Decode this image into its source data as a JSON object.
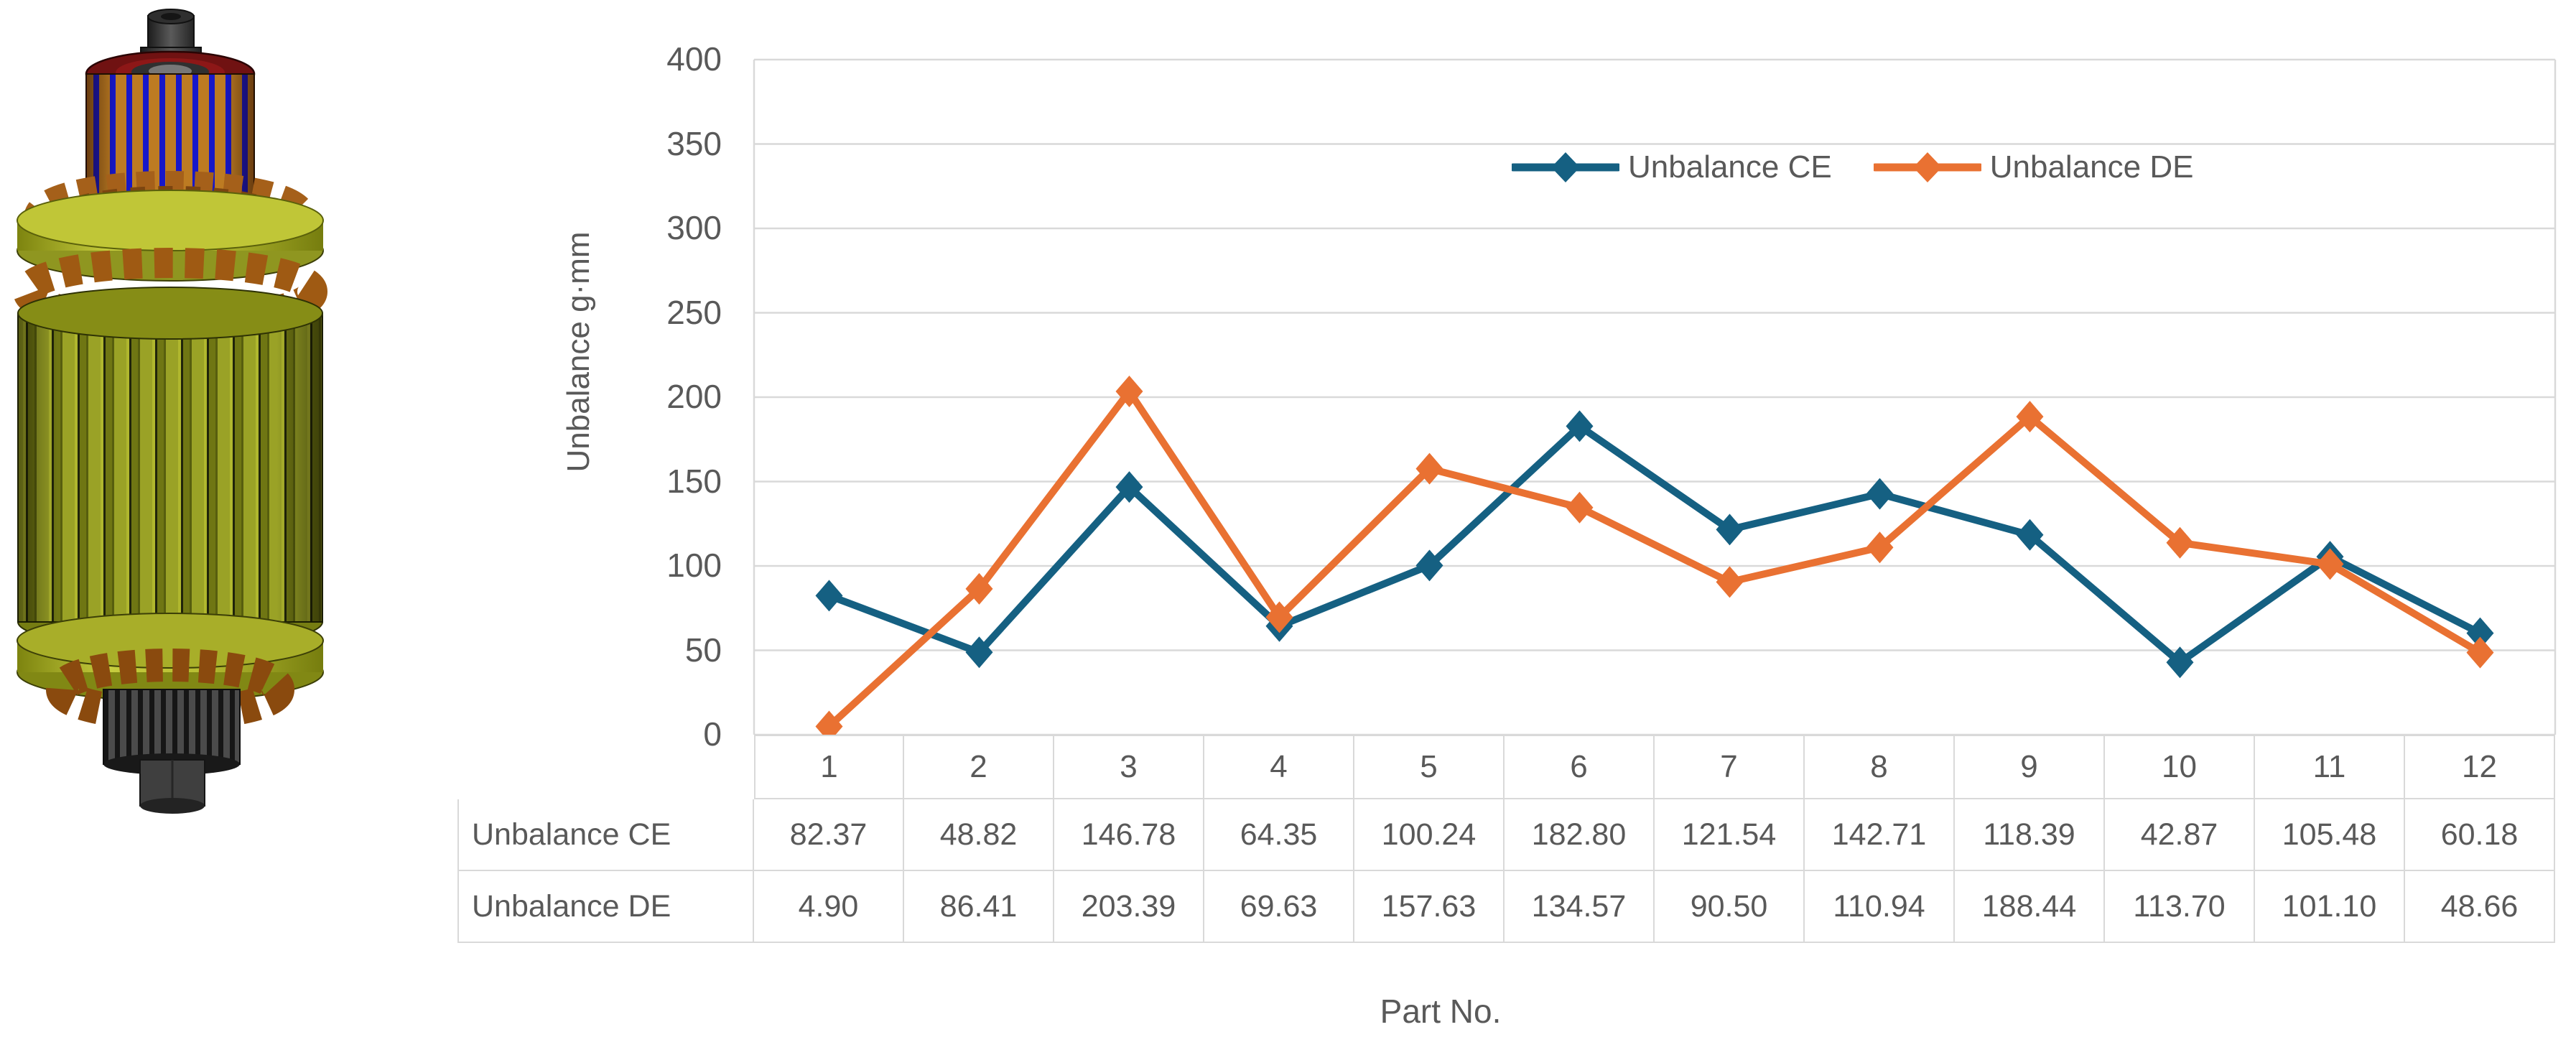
{
  "figure": {
    "alt": "3D CAD render of an electric motor armature rotor with commutator, windings and splined shaft"
  },
  "colors": {
    "series_ce": "#156082",
    "series_de": "#E97132",
    "grid": "#d9d9d9",
    "axis_line": "#d9d9d9",
    "axis_text": "#595959",
    "table_border": "#d9d9d9"
  },
  "chart": {
    "y_axis_title": "Unbalance g·mm",
    "x_axis_title": "Part No.",
    "y_ticks": [
      400,
      350,
      300,
      250,
      200,
      150,
      100,
      50,
      0
    ],
    "legend": [
      {
        "label": "Unbalance CE",
        "color": "#156082"
      },
      {
        "label": "Unbalance DE",
        "color": "#E97132"
      }
    ]
  },
  "chart_data": {
    "type": "line",
    "categories": [
      "1",
      "2",
      "3",
      "4",
      "5",
      "6",
      "7",
      "8",
      "9",
      "10",
      "11",
      "12"
    ],
    "series": [
      {
        "name": "Unbalance CE",
        "color": "#156082",
        "marker": "diamond",
        "values": [
          82.37,
          48.82,
          146.78,
          64.35,
          100.24,
          182.8,
          121.54,
          142.71,
          118.39,
          42.87,
          105.48,
          60.18
        ]
      },
      {
        "name": "Unbalance DE",
        "color": "#E97132",
        "marker": "diamond",
        "values": [
          4.9,
          86.41,
          203.39,
          69.63,
          157.63,
          134.57,
          90.5,
          110.94,
          188.44,
          113.7,
          101.1,
          48.66
        ]
      }
    ],
    "title": "",
    "xlabel": "Part No.",
    "ylabel": "Unbalance g·mm",
    "ylim": [
      0,
      400
    ],
    "ytick_step": 50,
    "grid": true,
    "legend_position": "top-inside"
  },
  "table": {
    "rows": [
      {
        "label": "Unbalance CE",
        "values": [
          "82.37",
          "48.82",
          "146.78",
          "64.35",
          "100.24",
          "182.80",
          "121.54",
          "142.71",
          "118.39",
          "42.87",
          "105.48",
          "60.18"
        ]
      },
      {
        "label": "Unbalance DE",
        "values": [
          "4.90",
          "86.41",
          "203.39",
          "69.63",
          "157.63",
          "134.57",
          "90.50",
          "110.94",
          "188.44",
          "113.70",
          "101.10",
          "48.66"
        ]
      }
    ]
  }
}
